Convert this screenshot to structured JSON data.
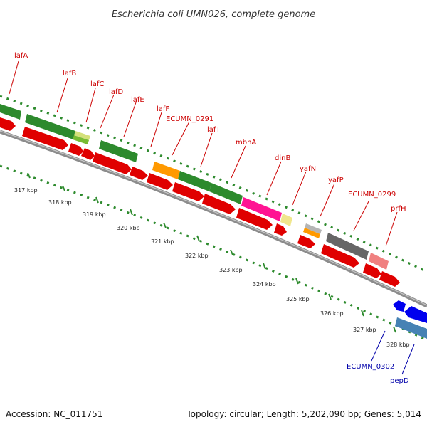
{
  "title": "Escherichia coli UMN026, complete genome",
  "accession": "Accession: NC_011751",
  "topology": "Topology: circular; Length: 5,202,090 bp; Genes: 5,014",
  "colors": {
    "forward_label": "#cc0000",
    "reverse_label": "#0000aa",
    "backbone": "#8c8c8c",
    "dots": "#2e8b2e",
    "cds": "#e00000",
    "green": "#2d8a2d",
    "orange": "#ff9900",
    "magenta": "#ff1493",
    "grey": "#666666",
    "pink": "#f08080",
    "blue": "#0000ee",
    "steel": "#4682b4",
    "pale_yellow": "#f0e68c",
    "lime": "#99cc33"
  },
  "scale_labels": [
    "317 kbp",
    "318 kbp",
    "319 kbp",
    "320 kbp",
    "321 kbp",
    "322 kbp",
    "323 kbp",
    "324 kbp",
    "325 kbp",
    "326 kbp",
    "327 kbp",
    "328 kbp"
  ],
  "forward_genes": [
    {
      "label": "lafA"
    },
    {
      "label": "lafB"
    },
    {
      "label": "lafC"
    },
    {
      "label": "lafD"
    },
    {
      "label": "lafE"
    },
    {
      "label": "lafF"
    },
    {
      "label": "ECUMN_0291"
    },
    {
      "label": "lafT"
    },
    {
      "label": "mbhA"
    },
    {
      "label": "dinB"
    },
    {
      "label": "yafN"
    },
    {
      "label": "yafP"
    },
    {
      "label": "ECUMN_0299"
    },
    {
      "label": "prfH"
    }
  ],
  "reverse_genes": [
    {
      "label": "ECUMN_0302"
    },
    {
      "label": "pepD"
    }
  ]
}
